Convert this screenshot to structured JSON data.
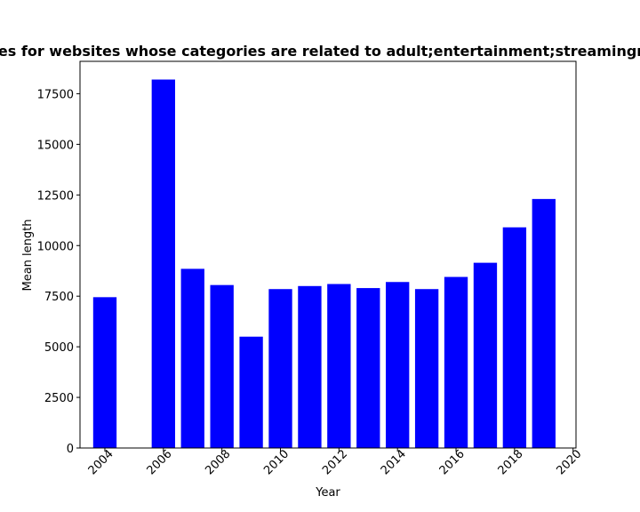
{
  "chart_data": {
    "type": "bar",
    "title": "Mean length of privacy policies for websites whose categories are related to adult;entertainment;streamingmedia Mean length in privacy",
    "xlabel": "Year",
    "ylabel": "Mean length",
    "x": [
      2004,
      2006,
      2007,
      2008,
      2009,
      2010,
      2011,
      2012,
      2013,
      2014,
      2015,
      2016,
      2017,
      2018,
      2019
    ],
    "values": [
      7450,
      18200,
      8850,
      8050,
      5500,
      7850,
      8000,
      8100,
      7900,
      8200,
      7850,
      8450,
      9150,
      10900,
      12300
    ],
    "xlim": [
      2003.15,
      2020.1
    ],
    "ylim": [
      0,
      19100
    ],
    "xticks": [
      2004,
      2006,
      2008,
      2010,
      2012,
      2014,
      2016,
      2018,
      2020
    ],
    "yticks": [
      0,
      2500,
      5000,
      7500,
      10000,
      12500,
      15000,
      17500
    ],
    "bar_color": "#0000ff",
    "grid": false,
    "legend": "none"
  }
}
